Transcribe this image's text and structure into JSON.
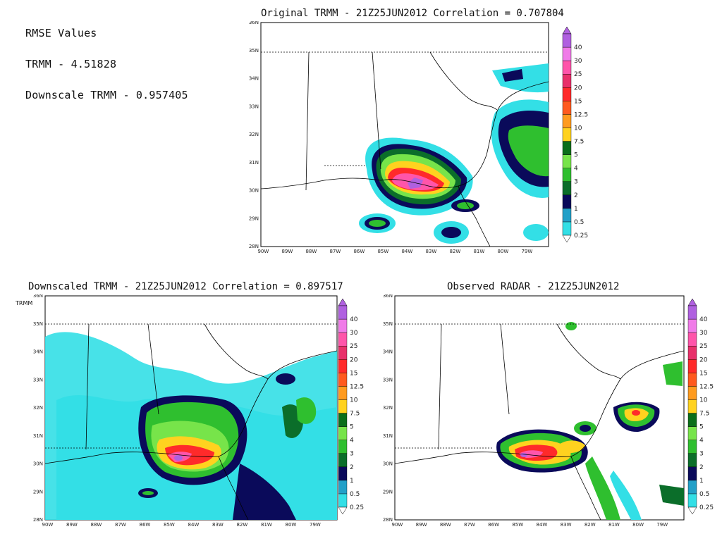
{
  "rmse": {
    "heading": "RMSE Values",
    "trmm": "TRMM  -  4.51828",
    "downscale": "Downscale TRMM  -  0.957405"
  },
  "panels": {
    "original": {
      "title": "Original TRMM  -  21Z25JUN2012 Correlation = 0.707804"
    },
    "downscaled": {
      "title": "Downscaled TRMM  -  21Z25JUN2012 Correlation = 0.897517"
    },
    "radar": {
      "title": "Observed RADAR  -  21Z25JUN2012"
    }
  },
  "legend_overlay": {
    "label": "TRMM",
    "marker": "T"
  },
  "axes": {
    "lat_ticks": [
      "28N",
      "29N",
      "30N",
      "31N",
      "32N",
      "33N",
      "34N",
      "35N",
      "36N"
    ],
    "lon_ticks": [
      "90W",
      "89W",
      "88W",
      "87W",
      "86W",
      "85W",
      "84W",
      "83W",
      "82W",
      "81W",
      "80W",
      "79W"
    ]
  },
  "colorbar": {
    "levels": [
      "0.25",
      "0.5",
      "1",
      "2",
      "3",
      "4",
      "5",
      "7.5",
      "10",
      "12.5",
      "15",
      "20",
      "25",
      "30",
      "40"
    ],
    "colors": [
      "#33dfe6",
      "#22a0c8",
      "#0a0a5a",
      "#0b6e2a",
      "#2fbf2f",
      "#77e44a",
      "#0a6e1a",
      "#ffd21f",
      "#ff9b1f",
      "#ff5a1f",
      "#ff2a2a",
      "#e8306a",
      "#ff55aa",
      "#f07be8",
      "#b060e0"
    ]
  },
  "colors": {
    "background": "#ffffff",
    "coastline": "#000000"
  }
}
